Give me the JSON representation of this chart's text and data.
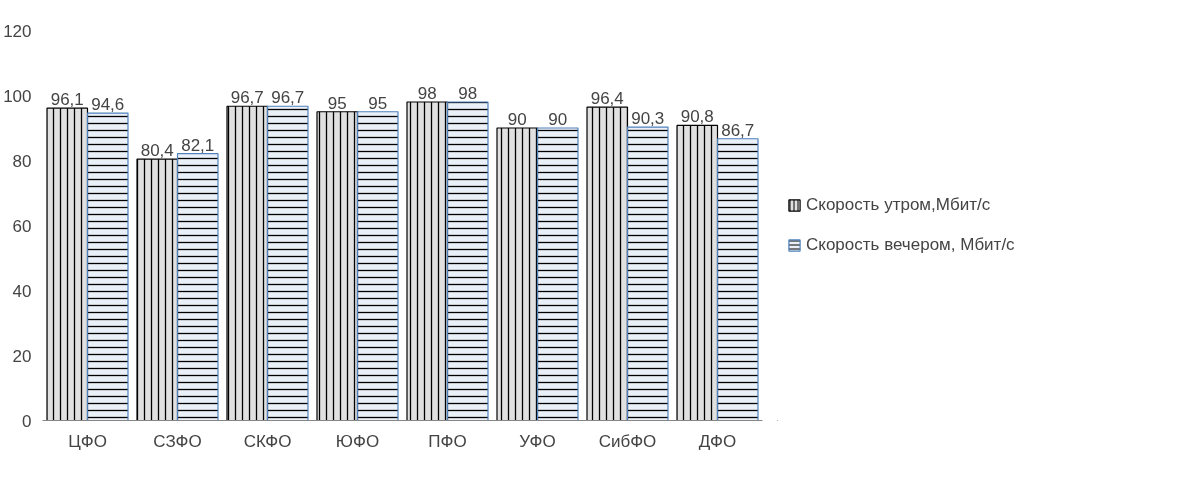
{
  "chart_data": {
    "type": "bar",
    "categories": [
      "ЦФО",
      "СЗФО",
      "СКФО",
      "ЮФО",
      "ПФО",
      "УФО",
      "СибФО",
      "ДФО"
    ],
    "series": [
      {
        "name": "Скорость утром,Мбит/с",
        "color": "#000000",
        "values": [
          96.1,
          80.4,
          96.7,
          95,
          98,
          90,
          96.4,
          90.8
        ],
        "value_labels": [
          "96,1",
          "80,4",
          "96,7",
          "95",
          "98",
          "90",
          "96,4",
          "90,8"
        ]
      },
      {
        "name": "Скорость вечером, Мбит/с",
        "color": "#4f81bd",
        "values": [
          94.6,
          82.1,
          96.7,
          95,
          98,
          90,
          90.3,
          86.7
        ],
        "value_labels": [
          "94,6",
          "82,1",
          "96,7",
          "95",
          "98",
          "90",
          "90,3",
          "86,7"
        ]
      }
    ],
    "ylim": [
      0,
      120
    ],
    "yticks": [
      0,
      20,
      40,
      60,
      80,
      100,
      120
    ],
    "grid": false,
    "legend": "right"
  }
}
